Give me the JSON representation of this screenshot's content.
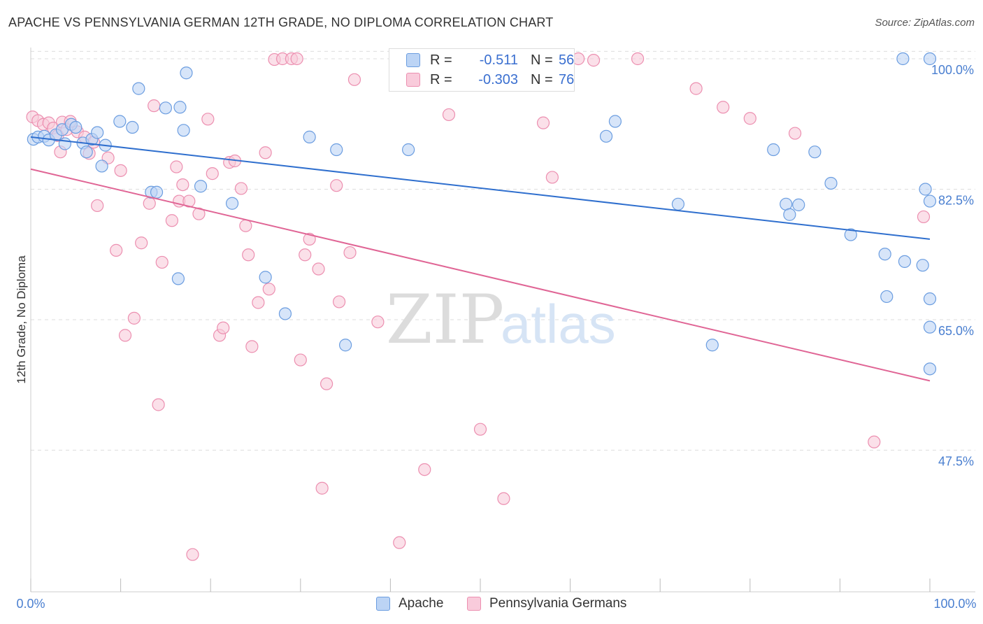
{
  "title": "APACHE VS PENNSYLVANIA GERMAN 12TH GRADE, NO DIPLOMA CORRELATION CHART",
  "source": "Source: ZipAtlas.com",
  "watermark": {
    "zip": "ZIP",
    "atlas": "atlas"
  },
  "legend": {
    "apache": {
      "r_label": "R =",
      "r_value": "-0.511",
      "n_label": "N =",
      "n_value": "56"
    },
    "penn": {
      "r_label": "R =",
      "r_value": "-0.303",
      "n_label": "N =",
      "n_value": "76"
    }
  },
  "colors": {
    "apache_fill": "#bcd4f5",
    "apache_stroke": "#6b9de0",
    "apache_line": "#2f6fce",
    "penn_fill": "#f9cbdb",
    "penn_stroke": "#ec8fb0",
    "penn_line": "#e06595",
    "tick_text": "#4a7fd0",
    "grid": "#dddddd"
  },
  "chart_data": {
    "type": "scatter",
    "title": "APACHE VS PENNSYLVANIA GERMAN 12TH GRADE, NO DIPLOMA CORRELATION CHART",
    "xlabel": "",
    "ylabel": "12th Grade, No Diploma",
    "xlim": [
      0,
      100
    ],
    "ylim": [
      28.5,
      101.5
    ],
    "x_tick_labels": [
      "0.0%",
      "100.0%"
    ],
    "y_ticks": [
      47.5,
      65.0,
      82.5,
      100.0
    ],
    "y_tick_labels": [
      "47.5%",
      "65.0%",
      "82.5%",
      "100.0%"
    ],
    "grid": true,
    "legend_position": "top-center",
    "series": [
      {
        "name": "Apache",
        "r": -0.511,
        "n": 56,
        "trend": {
          "x": [
            0,
            100
          ],
          "y": [
            89.5,
            75.8
          ]
        },
        "points": [
          [
            0.3,
            89.2
          ],
          [
            0.8,
            89.5
          ],
          [
            1.5,
            89.6
          ],
          [
            2.0,
            89.1
          ],
          [
            2.8,
            89.8
          ],
          [
            3.5,
            90.5
          ],
          [
            3.8,
            88.6
          ],
          [
            4.5,
            91.2
          ],
          [
            5.0,
            90.8
          ],
          [
            5.8,
            88.7
          ],
          [
            6.2,
            87.5
          ],
          [
            6.8,
            89.2
          ],
          [
            7.4,
            90.1
          ],
          [
            7.9,
            85.6
          ],
          [
            8.3,
            88.4
          ],
          [
            9.9,
            91.6
          ],
          [
            11.3,
            90.8
          ],
          [
            12.0,
            96.0
          ],
          [
            13.4,
            82.1
          ],
          [
            14.0,
            82.1
          ],
          [
            15.0,
            93.4
          ],
          [
            16.4,
            70.5
          ],
          [
            16.6,
            93.5
          ],
          [
            17.0,
            90.4
          ],
          [
            17.3,
            98.1
          ],
          [
            18.9,
            82.9
          ],
          [
            22.4,
            80.6
          ],
          [
            26.1,
            70.7
          ],
          [
            28.3,
            65.8
          ],
          [
            31.0,
            89.5
          ],
          [
            34.0,
            87.8
          ],
          [
            35.0,
            61.6
          ],
          [
            42.0,
            87.8
          ],
          [
            55.6,
            100.0
          ],
          [
            64.0,
            89.6
          ],
          [
            65.0,
            91.6
          ],
          [
            72.0,
            80.5
          ],
          [
            75.8,
            61.6
          ],
          [
            82.6,
            87.8
          ],
          [
            84.0,
            80.5
          ],
          [
            84.4,
            79.1
          ],
          [
            85.4,
            80.4
          ],
          [
            87.2,
            87.5
          ],
          [
            89.0,
            83.3
          ],
          [
            91.2,
            76.4
          ],
          [
            95.0,
            73.8
          ],
          [
            95.2,
            68.1
          ],
          [
            97.2,
            72.8
          ],
          [
            99.2,
            72.3
          ],
          [
            99.5,
            82.5
          ],
          [
            100.0,
            100.0
          ],
          [
            100.0,
            67.8
          ],
          [
            100.0,
            64.0
          ],
          [
            100.0,
            80.9
          ],
          [
            100.0,
            58.4
          ],
          [
            97.0,
            100.0
          ]
        ]
      },
      {
        "name": "Pennsylvania Germans",
        "r": -0.303,
        "n": 76,
        "trend": {
          "x": [
            0,
            100
          ],
          "y": [
            85.2,
            56.8
          ]
        },
        "points": [
          [
            0.2,
            92.2
          ],
          [
            0.8,
            91.7
          ],
          [
            1.4,
            91.2
          ],
          [
            2.0,
            91.4
          ],
          [
            2.5,
            90.7
          ],
          [
            3.0,
            89.7
          ],
          [
            3.3,
            87.5
          ],
          [
            3.5,
            91.5
          ],
          [
            4.0,
            90.5
          ],
          [
            4.4,
            91.6
          ],
          [
            5.2,
            90.2
          ],
          [
            6.0,
            89.5
          ],
          [
            6.5,
            87.3
          ],
          [
            7.0,
            88.8
          ],
          [
            7.4,
            80.3
          ],
          [
            8.6,
            86.7
          ],
          [
            9.5,
            74.3
          ],
          [
            10.0,
            85.0
          ],
          [
            10.5,
            62.9
          ],
          [
            11.5,
            65.2
          ],
          [
            12.3,
            75.3
          ],
          [
            13.2,
            80.6
          ],
          [
            13.7,
            93.7
          ],
          [
            14.2,
            53.6
          ],
          [
            14.6,
            72.7
          ],
          [
            15.7,
            78.3
          ],
          [
            16.2,
            85.5
          ],
          [
            16.5,
            80.9
          ],
          [
            16.9,
            83.1
          ],
          [
            17.6,
            80.9
          ],
          [
            18.0,
            33.5
          ],
          [
            18.7,
            79.2
          ],
          [
            19.7,
            91.9
          ],
          [
            20.2,
            84.6
          ],
          [
            21.0,
            62.9
          ],
          [
            21.4,
            63.9
          ],
          [
            22.1,
            86.1
          ],
          [
            22.7,
            86.3
          ],
          [
            23.4,
            82.6
          ],
          [
            23.9,
            77.6
          ],
          [
            24.2,
            73.7
          ],
          [
            24.6,
            61.4
          ],
          [
            25.3,
            67.3
          ],
          [
            26.1,
            87.4
          ],
          [
            26.5,
            69.1
          ],
          [
            27.1,
            99.9
          ],
          [
            28.0,
            100.0
          ],
          [
            29.0,
            100.0
          ],
          [
            29.6,
            100.0
          ],
          [
            30.0,
            59.6
          ],
          [
            30.5,
            73.7
          ],
          [
            31.0,
            75.8
          ],
          [
            32.0,
            71.8
          ],
          [
            32.4,
            42.4
          ],
          [
            32.9,
            56.4
          ],
          [
            34.0,
            83.0
          ],
          [
            34.3,
            67.4
          ],
          [
            35.5,
            74.0
          ],
          [
            36.0,
            97.2
          ],
          [
            38.6,
            64.7
          ],
          [
            41.0,
            35.1
          ],
          [
            43.8,
            44.9
          ],
          [
            46.5,
            92.5
          ],
          [
            50.0,
            50.3
          ],
          [
            52.6,
            41.0
          ],
          [
            57.0,
            91.4
          ],
          [
            58.0,
            84.1
          ],
          [
            60.9,
            100.0
          ],
          [
            62.6,
            99.8
          ],
          [
            67.5,
            100.0
          ],
          [
            74.0,
            96.0
          ],
          [
            77.0,
            93.5
          ],
          [
            80.0,
            92.0
          ],
          [
            85.0,
            90.0
          ],
          [
            93.8,
            48.6
          ],
          [
            99.3,
            78.8
          ]
        ]
      }
    ]
  }
}
